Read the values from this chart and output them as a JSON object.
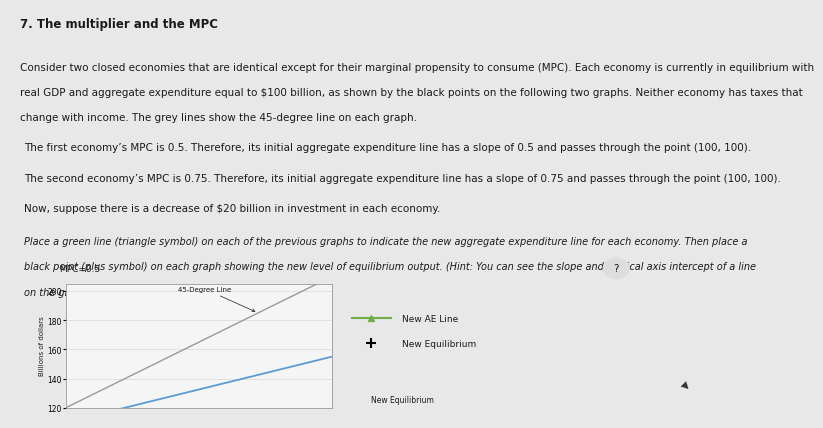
{
  "title": "7. The multiplier and the MPC",
  "para1_lines": [
    "Consider two closed economies that are identical except for their marginal propensity to consume (MPC). Each economy is currently in equilibrium with",
    "real GDP and aggregate expenditure equal to $100 billion, as shown by the black points on the following two graphs. Neither economy has taxes that",
    "change with income. The grey lines show the 45-degree line on each graph."
  ],
  "para2": "The first economy’s MPC is 0.5. Therefore, its initial aggregate expenditure line has a slope of 0.5 and passes through the point (100, 100).",
  "para3": "The second economy’s MPC is 0.75. Therefore, its initial aggregate expenditure line has a slope of 0.75 and passes through the point (100, 100).",
  "para4": "Now, suppose there is a decrease of $20 billion in investment in each economy.",
  "italic_lines": [
    "Place a green line (triangle symbol) on each of the previous graphs to indicate the new aggregate expenditure line for each economy. Then place a",
    "black point (plus symbol) on each graph showing the new level of equilibrium output. (Hint: You can see the slope and vertical axis intercept of a line",
    "on the graph by selecting it.)"
  ],
  "graph1_title": "MPC=0.5",
  "ylabel": "Billions of dollars",
  "ylim": [
    120,
    205
  ],
  "xlim": [
    120,
    210
  ],
  "yticks": [
    120,
    140,
    160,
    180,
    200
  ],
  "deg45_color": "#999999",
  "ae_line_color": "#5b9bd5",
  "new_ae_color": "#70ad47",
  "bg_color": "#e8e8e8",
  "plot_bg": "#f5f5f5",
  "white_panel_bg": "#f0eeee",
  "legend_new_ae": "New AE Line",
  "legend_new_eq": "New Equilibrium",
  "text_color": "#1a1a1a",
  "font_size_body": 7.5,
  "font_size_title": 8.5,
  "font_size_italic": 7.0
}
